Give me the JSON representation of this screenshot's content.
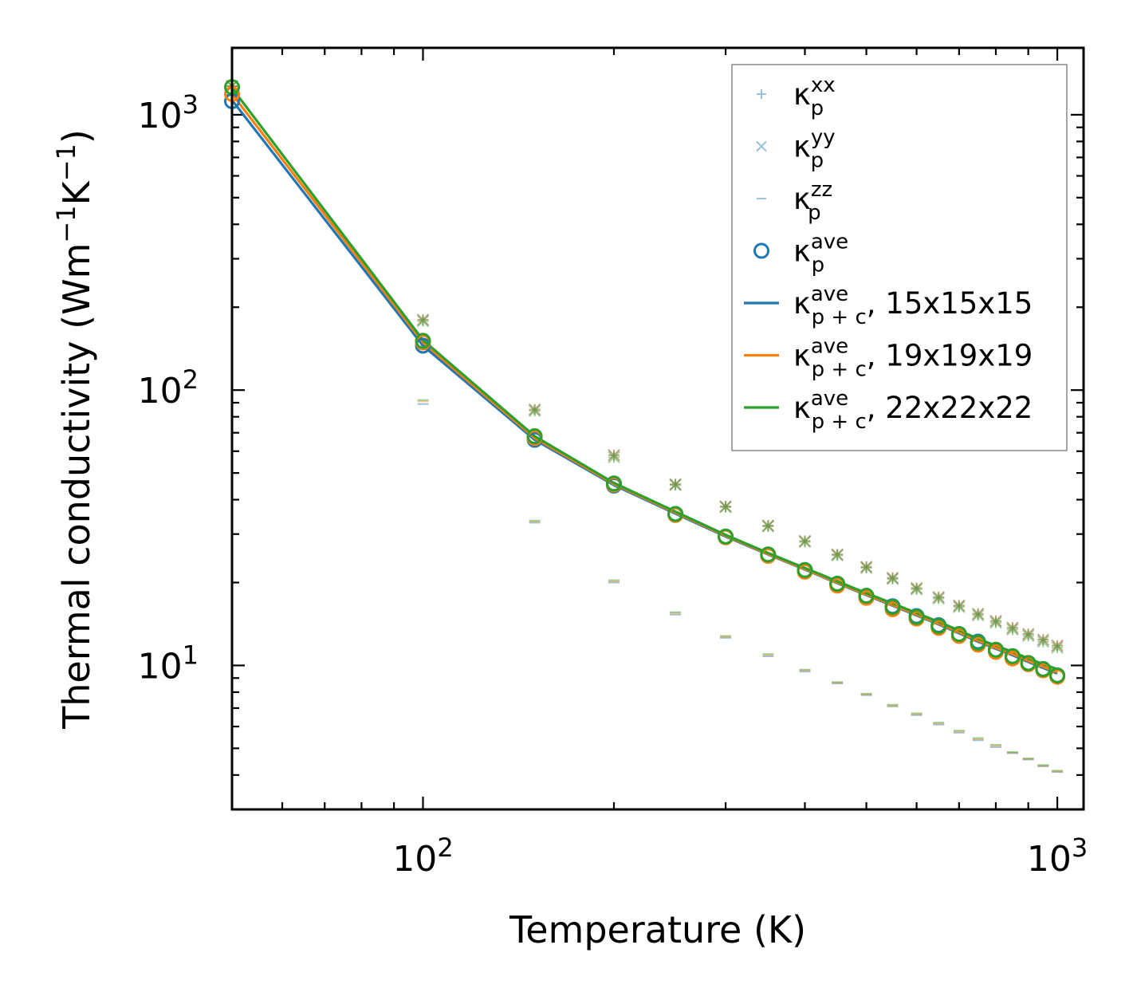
{
  "chart_data": {
    "type": "line",
    "xscale": "log",
    "yscale": "log",
    "xlim": [
      50,
      1100
    ],
    "ylim": [
      3.0,
      1750
    ],
    "xlabel": "Temperature (K)",
    "ylabel": {
      "main": "Thermal conductivity (Wm",
      "sup1": "−1",
      "mid": "K",
      "sup2": "−1",
      "end": ")"
    },
    "x_tick_labels": [
      {
        "value": 100,
        "base": "10",
        "exp": "2"
      },
      {
        "value": 1000,
        "base": "10",
        "exp": "3"
      }
    ],
    "y_tick_labels": [
      {
        "value": 10,
        "base": "10",
        "exp": "1"
      },
      {
        "value": 100,
        "base": "10",
        "exp": "2"
      },
      {
        "value": 1000,
        "base": "10",
        "exp": "3"
      }
    ],
    "temperatures": [
      50,
      100,
      150,
      200,
      250,
      300,
      350,
      400,
      450,
      500,
      550,
      600,
      650,
      700,
      750,
      800,
      850,
      900,
      950,
      1000
    ],
    "series": [
      {
        "name": "κp^xx",
        "kind": "marker",
        "marker": "plus",
        "color": "#1f77b4",
        "alpha": 0.45,
        "values": [
          1270,
          180,
          85,
          58,
          45.5,
          37.8,
          32.2,
          28.3,
          25.3,
          22.8,
          20.8,
          19.1,
          17.7,
          16.5,
          15.4,
          14.5,
          13.7,
          13.0,
          12.4,
          11.8
        ]
      },
      {
        "name": "κp^yy",
        "kind": "marker",
        "marker": "x",
        "color": "#1f77b4",
        "alpha": 0.45,
        "values": [
          1270,
          180,
          85,
          58,
          45.5,
          37.8,
          32.2,
          28.3,
          25.3,
          22.8,
          20.8,
          19.1,
          17.7,
          16.5,
          15.4,
          14.5,
          13.7,
          13.0,
          12.4,
          11.8
        ]
      },
      {
        "name": "κp^zz",
        "kind": "marker",
        "marker": "dash",
        "color": "#1f77b4",
        "alpha": 0.45,
        "values": [
          1180,
          89,
          33,
          20,
          15.3,
          12.6,
          10.8,
          9.5,
          8.6,
          7.8,
          7.1,
          6.6,
          6.1,
          5.7,
          5.35,
          5.05,
          4.8,
          4.55,
          4.3,
          4.1
        ]
      },
      {
        "name": "κp^ave",
        "kind": "marker",
        "marker": "circle",
        "color": "#1f77b4",
        "alpha": 1,
        "values": [
          1120,
          145,
          66,
          45,
          35.5,
          29.3,
          25.2,
          22.2,
          19.8,
          17.9,
          16.4,
          15.1,
          14.0,
          13.0,
          12.2,
          11.4,
          10.8,
          10.2,
          9.7,
          9.2
        ]
      },
      {
        "name": "κp+c^ave, 15x15x15",
        "kind": "line",
        "color": "#1f77b4",
        "values": [
          1130,
          145,
          66,
          45.2,
          35.6,
          29.4,
          25.3,
          22.3,
          19.9,
          18.0,
          16.5,
          15.2,
          14.1,
          13.1,
          12.2,
          11.5,
          10.9,
          10.3,
          9.8,
          9.35
        ]
      },
      {
        "name": "κp+c^ave, 19x19x19",
        "kind": "line",
        "color": "#ff7f0e",
        "values": [
          1190,
          149,
          67,
          45.6,
          35.9,
          29.6,
          25.4,
          22.4,
          20.0,
          18.1,
          16.6,
          15.3,
          14.2,
          13.2,
          12.3,
          11.6,
          11.0,
          10.4,
          9.9,
          9.45
        ]
      },
      {
        "name": "κp+c^ave, 22x22x22",
        "kind": "line",
        "color": "#2ca02c",
        "values": [
          1250,
          152,
          68,
          46,
          36.2,
          29.8,
          25.6,
          22.6,
          20.2,
          18.3,
          16.8,
          15.5,
          14.4,
          13.4,
          12.5,
          11.8,
          11.2,
          10.6,
          10.1,
          9.7
        ]
      },
      {
        "name": "orange circles",
        "kind": "marker",
        "marker": "circle",
        "color": "#ff7f0e",
        "alpha": 1,
        "in_legend": false,
        "values": [
          1190,
          149,
          67,
          45.4,
          35.2,
          29.2,
          25.0,
          21.9,
          19.5,
          17.6,
          16.0,
          14.8,
          13.7,
          12.8,
          11.9,
          11.2,
          10.6,
          10.1,
          9.6,
          9.1
        ]
      },
      {
        "name": "green circles",
        "kind": "marker",
        "marker": "circle",
        "color": "#2ca02c",
        "alpha": 1,
        "in_legend": false,
        "values": [
          1260,
          151,
          68,
          45.8,
          35.5,
          29.4,
          25.3,
          22.2,
          19.8,
          17.9,
          16.3,
          15.0,
          13.9,
          13.0,
          12.1,
          11.4,
          10.8,
          10.2,
          9.7,
          9.2
        ]
      },
      {
        "name": "orange x/+",
        "kind": "marker",
        "marker": "star",
        "color": "#ff7f0e",
        "alpha": 0.45,
        "in_legend": false,
        "values": [
          1270,
          180,
          85,
          58,
          45.5,
          37.8,
          32.2,
          28.3,
          25.3,
          22.8,
          20.8,
          19.1,
          17.7,
          16.5,
          15.4,
          14.5,
          13.7,
          13.0,
          12.4,
          11.8
        ]
      },
      {
        "name": "green x/+",
        "kind": "marker",
        "marker": "star",
        "color": "#2ca02c",
        "alpha": 0.45,
        "in_legend": false,
        "values": [
          1270,
          178,
          84,
          57,
          45.2,
          37.6,
          32.0,
          28.1,
          25.1,
          22.6,
          20.6,
          18.9,
          17.5,
          16.3,
          15.2,
          14.3,
          13.5,
          12.8,
          12.2,
          11.6
        ]
      },
      {
        "name": "orange dash",
        "kind": "marker",
        "marker": "dash",
        "color": "#ff7f0e",
        "alpha": 0.45,
        "in_legend": false,
        "values": [
          1180,
          91,
          33.3,
          20.2,
          15.5,
          12.7,
          10.9,
          9.6,
          8.65,
          7.85,
          7.15,
          6.65,
          6.15,
          5.75,
          5.4,
          5.1,
          4.82,
          4.57,
          4.32,
          4.12
        ]
      },
      {
        "name": "green dash",
        "kind": "marker",
        "marker": "dash",
        "color": "#2ca02c",
        "alpha": 0.45,
        "in_legend": false,
        "values": [
          1180,
          92,
          33.6,
          20.4,
          15.6,
          12.8,
          11.0,
          9.65,
          8.7,
          7.9,
          7.2,
          6.7,
          6.2,
          5.8,
          5.45,
          5.15,
          4.85,
          4.6,
          4.35,
          4.15
        ]
      }
    ],
    "legend": {
      "position": "top-right",
      "entries": [
        {
          "marker": "plus",
          "color": "#1f77b4",
          "alpha": 0.45,
          "base": "κ",
          "sub": "p",
          "sup": "xx",
          "suffix": ""
        },
        {
          "marker": "x",
          "color": "#1f77b4",
          "alpha": 0.45,
          "base": "κ",
          "sub": "p",
          "sup": "yy",
          "suffix": ""
        },
        {
          "marker": "dash",
          "color": "#1f77b4",
          "alpha": 0.45,
          "base": "κ",
          "sub": "p",
          "sup": "zz",
          "suffix": ""
        },
        {
          "marker": "circle",
          "color": "#1f77b4",
          "alpha": 1,
          "base": "κ",
          "sub": "p",
          "sup": "ave",
          "suffix": ""
        },
        {
          "marker": "line",
          "color": "#1f77b4",
          "alpha": 1,
          "base": "κ",
          "sub": "p + c",
          "sup": "ave",
          "suffix": ", 15x15x15"
        },
        {
          "marker": "line",
          "color": "#ff7f0e",
          "alpha": 1,
          "base": "κ",
          "sub": "p + c",
          "sup": "ave",
          "suffix": ", 19x19x19"
        },
        {
          "marker": "line",
          "color": "#2ca02c",
          "alpha": 1,
          "base": "κ",
          "sub": "p + c",
          "sup": "ave",
          "suffix": ", 22x22x22"
        }
      ]
    }
  }
}
